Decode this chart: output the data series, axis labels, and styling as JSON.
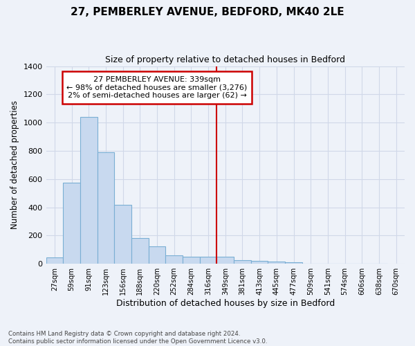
{
  "title": "27, PEMBERLEY AVENUE, BEDFORD, MK40 2LE",
  "subtitle": "Size of property relative to detached houses in Bedford",
  "xlabel": "Distribution of detached houses by size in Bedford",
  "ylabel": "Number of detached properties",
  "footnote": "Contains HM Land Registry data © Crown copyright and database right 2024.\nContains public sector information licensed under the Open Government Licence v3.0.",
  "bin_labels": [
    "27sqm",
    "59sqm",
    "91sqm",
    "123sqm",
    "156sqm",
    "188sqm",
    "220sqm",
    "252sqm",
    "284sqm",
    "316sqm",
    "349sqm",
    "381sqm",
    "413sqm",
    "445sqm",
    "477sqm",
    "509sqm",
    "541sqm",
    "574sqm",
    "606sqm",
    "638sqm",
    "670sqm"
  ],
  "bar_heights": [
    45,
    575,
    1040,
    790,
    420,
    180,
    125,
    60,
    50,
    48,
    48,
    25,
    20,
    18,
    12,
    0,
    0,
    0,
    0,
    0,
    0
  ],
  "bar_color": "#c8d9ef",
  "bar_edge_color": "#7aafd4",
  "grid_color": "#d0d8e8",
  "background_color": "#eef2f9",
  "annotation_text": "27 PEMBERLEY AVENUE: 339sqm\n← 98% of detached houses are smaller (3,276)\n2% of semi-detached houses are larger (62) →",
  "annotation_box_color": "#ffffff",
  "annotation_border_color": "#cc0000",
  "vline_color": "#cc0000",
  "vline_x_bin": 10,
  "ylim": [
    0,
    1400
  ],
  "yticks": [
    0,
    200,
    400,
    600,
    800,
    1000,
    1200,
    1400
  ]
}
